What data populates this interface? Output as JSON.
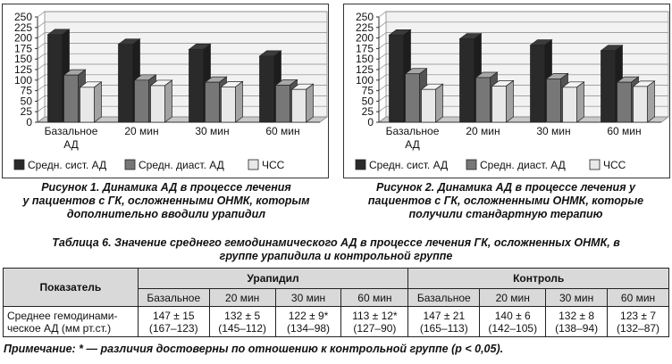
{
  "figures": [
    {
      "caption_lines": [
        "Рисунок 1. Динамика АД в процессе лечения",
        "у пациентов с ГК, осложненными ОНМК, которым",
        "дополнительно вводили урапидил"
      ]
    },
    {
      "caption_lines": [
        "Рисунок 2. Динамика АД в процессе лечения у",
        "пациентов с ГК, осложненными ОНМК, которые",
        "получили стандартную терапию"
      ]
    }
  ],
  "chart_data": [
    {
      "type": "bar",
      "categories": [
        "Базальное АД",
        "20 мин",
        "30 мин",
        "60 мин"
      ],
      "ylim": [
        0,
        250
      ],
      "yticks": [
        0,
        25,
        50,
        75,
        100,
        125,
        150,
        175,
        200,
        225,
        250
      ],
      "grid": true,
      "legend_position": "bottom",
      "series": [
        {
          "name": "Средн. сист. АД",
          "color": "#2a2a2a",
          "values": [
            208,
            185,
            173,
            157
          ]
        },
        {
          "name": "Средн. диаст. АД",
          "color": "#777777",
          "values": [
            112,
            100,
            95,
            88
          ]
        },
        {
          "name": "ЧСС",
          "color": "#e8e8e8",
          "values": [
            83,
            87,
            84,
            78
          ]
        }
      ]
    },
    {
      "type": "bar",
      "categories": [
        "Базальное АД",
        "20 мин",
        "30 мин",
        "60 мин"
      ],
      "ylim": [
        0,
        250
      ],
      "yticks": [
        0,
        25,
        50,
        75,
        100,
        125,
        150,
        175,
        200,
        225,
        250
      ],
      "grid": true,
      "legend_position": "bottom",
      "series": [
        {
          "name": "Средн. сист. АД",
          "color": "#2a2a2a",
          "values": [
            207,
            198,
            183,
            170
          ]
        },
        {
          "name": "Средн. диаст. АД",
          "color": "#777777",
          "values": [
            115,
            106,
            103,
            95
          ]
        },
        {
          "name": "ЧСС",
          "color": "#e8e8e8",
          "values": [
            78,
            86,
            83,
            85
          ]
        }
      ]
    }
  ],
  "table": {
    "caption_lines": [
      "Таблица 6. Значение среднего гемодинамического АД в процессе лечения ГК, осложненных ОНМК, в",
      "группе урапидила и контрольной группе"
    ],
    "header_param": "Показатель",
    "group1": "Урапидил",
    "group2": "Контроль",
    "subheaders": [
      "Базальное",
      "20 мин",
      "30 мин",
      "60 мин",
      "Базальное",
      "20 мин",
      "30 мин",
      "60 мин"
    ],
    "row_label_lines": [
      "Среднее гемодинами-",
      "ческое АД (мм рт.ст.)"
    ],
    "cells": [
      [
        "147 ± 15",
        "(167–123)"
      ],
      [
        "132 ± 5",
        "(145–112)"
      ],
      [
        "122 ± 9*",
        "(134–98)"
      ],
      [
        "113 ± 12*",
        "(127–90)"
      ],
      [
        "147 ± 21",
        "(165–113)"
      ],
      [
        "140 ± 6",
        "(142–105)"
      ],
      [
        "132 ± 8",
        "(138–94)"
      ],
      [
        "123 ± 7",
        "(132–87)"
      ]
    ]
  },
  "note": "Примечание: * — различия достоверны по отношению к контрольной группе (p < 0,05)."
}
